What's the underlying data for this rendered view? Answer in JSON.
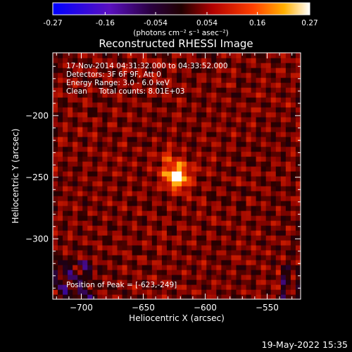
{
  "colorbar": {
    "ticks": [
      "-0.27",
      "-0.16",
      "-0.054",
      "0.054",
      "0.16",
      "0.27"
    ],
    "unit_label": "(photons cm⁻² s⁻¹ asec⁻²)"
  },
  "title": "Reconstructed RHESSI Image",
  "annotations": [
    "17-Nov-2014 04:31:32.000 to 04:33:52.000",
    "Detectors: 3F 6F 9F, Att 0",
    "Energy Range: 3.0 - 6.0 keV",
    "Clean     Total counts: 8.01E+03"
  ],
  "peak_label": "Position of Peak = [-623,-249]",
  "footer_date": "19-May-2022 15:35",
  "chart_data": {
    "type": "heatmap",
    "title": "Reconstructed RHESSI Image",
    "xlabel": "Heliocentric X (arcsec)",
    "ylabel": "Heliocentric Y (arcsec)",
    "xlim": [
      -723,
      -523
    ],
    "ylim": [
      -349,
      -149
    ],
    "xticks": [
      -700,
      -650,
      -600,
      -550
    ],
    "yticks": [
      -200,
      -250,
      -300
    ],
    "xtick_labels": [
      "−700",
      "−650",
      "−600",
      "−550"
    ],
    "ytick_labels": [
      "−200",
      "−250",
      "−300"
    ],
    "colormap": "hot-diverging (blue-purple-black-red-yellow-white)",
    "zlim": [
      -0.27,
      0.27
    ],
    "peak": {
      "x": -623,
      "y": -249,
      "value": 0.27
    },
    "secondary_source": {
      "x": -631,
      "y": -232,
      "value": 0.1
    },
    "grid": false
  }
}
